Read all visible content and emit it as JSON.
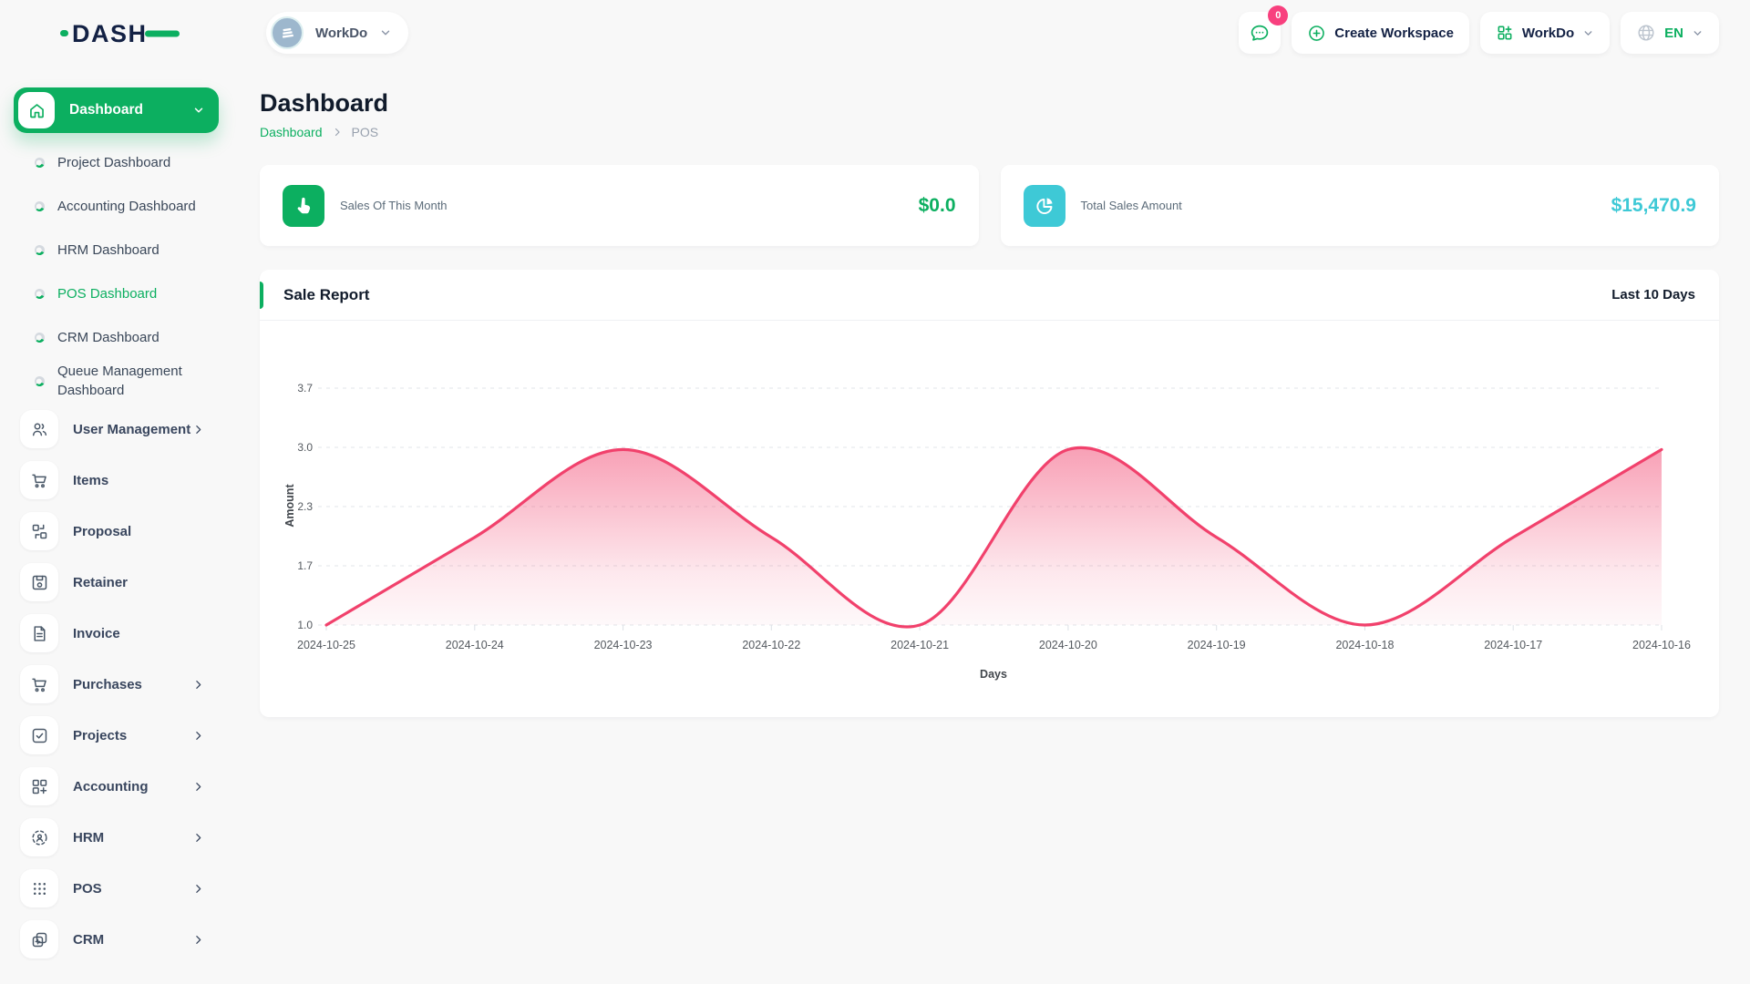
{
  "app": {
    "logo_text": "DASH"
  },
  "topbar": {
    "workspace_selector": {
      "label": "WorkDo",
      "avatar_icon": "building-icon"
    },
    "messages": {
      "icon": "chat-bubble-icon",
      "badge": "0"
    },
    "create_workspace": {
      "label": "Create Workspace",
      "icon": "plus-circle-icon"
    },
    "workspace_dropdown": {
      "label": "WorkDo",
      "icon": "grid-plus-icon"
    },
    "language": {
      "label": "EN",
      "icon": "globe-icon"
    }
  },
  "sidebar": {
    "group": {
      "label": "Dashboard",
      "icon": "home-icon"
    },
    "dashboard_children": [
      {
        "label": "Project Dashboard",
        "active": false
      },
      {
        "label": "Accounting Dashboard",
        "active": false
      },
      {
        "label": "HRM Dashboard",
        "active": false
      },
      {
        "label": "POS Dashboard",
        "active": true
      },
      {
        "label": "CRM Dashboard",
        "active": false
      },
      {
        "label": "Queue Management Dashboard",
        "active": false
      }
    ],
    "items": [
      {
        "label": "User Management",
        "icon": "users-icon",
        "has_children": true
      },
      {
        "label": "Items",
        "icon": "cart-icon",
        "has_children": false
      },
      {
        "label": "Proposal",
        "icon": "proposal-icon",
        "has_children": false
      },
      {
        "label": "Retainer",
        "icon": "retainer-icon",
        "has_children": false
      },
      {
        "label": "Invoice",
        "icon": "invoice-icon",
        "has_children": false
      },
      {
        "label": "Purchases",
        "icon": "cart-icon",
        "has_children": true
      },
      {
        "label": "Projects",
        "icon": "check-square-icon",
        "has_children": true
      },
      {
        "label": "Accounting",
        "icon": "grid-plus-icon",
        "has_children": true
      },
      {
        "label": "HRM",
        "icon": "hrm-icon",
        "has_children": true
      },
      {
        "label": "POS",
        "icon": "dots-grid-icon",
        "has_children": true
      },
      {
        "label": "CRM",
        "icon": "crm-icon",
        "has_children": true
      }
    ]
  },
  "page": {
    "title": "Dashboard",
    "breadcrumb": [
      {
        "label": "Dashboard"
      },
      {
        "label": "POS"
      }
    ]
  },
  "stats": [
    {
      "label": "Sales Of This Month",
      "value": "$0.0",
      "accent": "#0CAF60",
      "icon": "pointer-hand-icon"
    },
    {
      "label": "Total Sales Amount",
      "value": "$15,470.9",
      "accent": "#3EC9D6",
      "icon": "pie-chart-icon"
    }
  ],
  "report": {
    "title": "Sale Report",
    "range_label": "Last 10 Days"
  },
  "chart_data": {
    "type": "area",
    "title": "Sale Report",
    "x": [
      "2024-10-25",
      "2024-10-24",
      "2024-10-23",
      "2024-10-22",
      "2024-10-21",
      "2024-10-20",
      "2024-10-19",
      "2024-10-18",
      "2024-10-17",
      "2024-10-16"
    ],
    "values": [
      1,
      2,
      3,
      2,
      1,
      3,
      2,
      1,
      2,
      3
    ],
    "xlabel": "Days",
    "ylabel": "Amount",
    "yticks": [
      1.0,
      1.7,
      2.3,
      3.0,
      3.7
    ],
    "ylim": [
      1.0,
      3.7
    ],
    "line_color": "#F1416C",
    "fill": "pink gradient fading to white",
    "grid": "horizontal dashed",
    "legend": "none"
  },
  "colors": {
    "primary_green": "#0CAF60",
    "cyan": "#3EC9D6",
    "chart_pink": "#F1416C",
    "badge_pink": "#F8407E",
    "navy_text": "#132144",
    "background": "#F8F8F8"
  }
}
